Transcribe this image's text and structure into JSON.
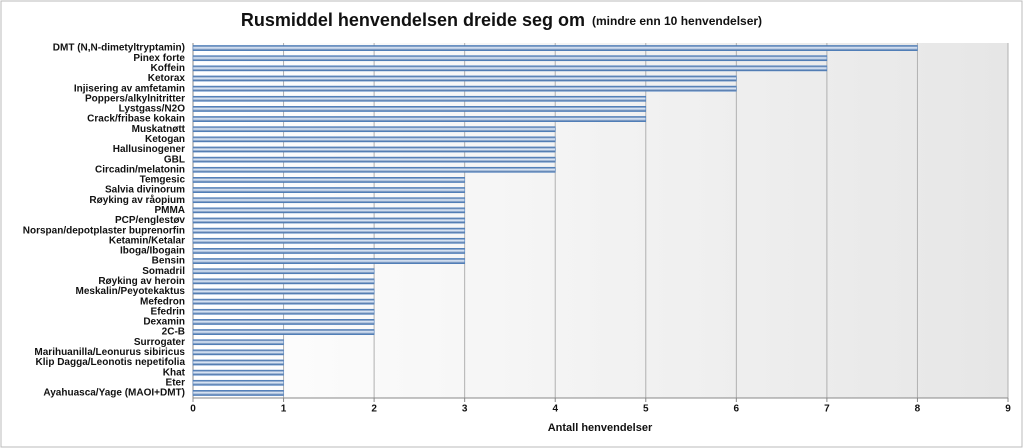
{
  "chart_data": {
    "type": "bar",
    "orientation": "horizontal",
    "title": "Rusmiddel henvendelsen dreide seg om",
    "subtitle": "(mindre enn 10 henvendelser)",
    "x_label": "Antall henvendelser",
    "categories": [
      "DMT (N,N-dimetyltryptamin)",
      "Pinex forte",
      "Koffein",
      "Ketorax",
      "Injisering av amfetamin",
      "Poppers/alkylnitritter",
      "Lystgass/N2O",
      "Crack/fribase kokain",
      "Muskatnøtt",
      "Ketogan",
      "Hallusinogener",
      "GBL",
      "Circadin/melatonin",
      "Temgesic",
      "Salvia divinorum",
      "Røyking av råopium",
      "PMMA",
      "PCP/englestøv",
      "Norspan/depotplaster buprenorfin",
      "Ketamin/Ketalar",
      "Iboga/Ibogain",
      "Bensin",
      "Somadril",
      "Røyking av heroin",
      "Meskalin/Peyotekaktus",
      "Mefedron",
      "Efedrin",
      "Dexamin",
      "2C-B",
      "Surrogater",
      "Marihuanilla/Leonurus sibiricus",
      "Klip Dagga/Leonotis nepetifolia",
      "Khat",
      "Eter",
      "Ayahuasca/Yage (MAOI+DMT)"
    ],
    "values": [
      8,
      7,
      7,
      6,
      6,
      5,
      5,
      5,
      4,
      4,
      4,
      4,
      4,
      3,
      3,
      3,
      3,
      3,
      3,
      3,
      3,
      3,
      2,
      2,
      2,
      2,
      2,
      2,
      2,
      1,
      1,
      1,
      1,
      1,
      1
    ],
    "color": "#4a7fc1",
    "xlim": [
      0,
      9
    ],
    "xticks": [
      0,
      1,
      2,
      3,
      4,
      5,
      6,
      7,
      8,
      9
    ],
    "grid": true
  }
}
